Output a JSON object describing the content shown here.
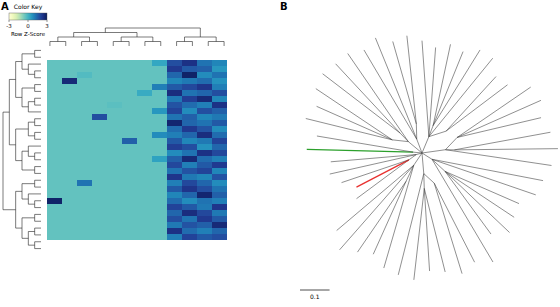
{
  "chart_data": [
    {
      "type": "heatmap",
      "panel": "A",
      "color_key": {
        "title": "Color Key",
        "label": "Row Z-Score",
        "range": [
          -3,
          3
        ],
        "ticks": [
          -3,
          0,
          3
        ]
      },
      "cells": [
        [
          -0.4,
          -0.4,
          -0.4,
          -0.4,
          -0.4,
          -0.4,
          -0.4,
          0.3,
          1.8,
          2.4,
          1.2,
          0.9
        ],
        [
          -0.4,
          -0.4,
          -0.4,
          -0.4,
          -0.4,
          -0.4,
          -0.4,
          -0.4,
          2.2,
          1.6,
          1.5,
          0.6
        ],
        [
          -0.4,
          -0.4,
          -0.2,
          -0.4,
          -0.4,
          -0.4,
          -0.4,
          -0.4,
          1.4,
          2.8,
          0.8,
          1.2
        ],
        [
          -0.4,
          2.6,
          -0.4,
          -0.4,
          -0.4,
          -0.4,
          -0.4,
          -0.4,
          0.9,
          1.1,
          1.3,
          0.7
        ],
        [
          -0.4,
          -0.4,
          -0.4,
          -0.4,
          -0.4,
          -0.4,
          -0.4,
          1.0,
          1.6,
          1.9,
          2.3,
          1.0
        ],
        [
          -0.4,
          -0.4,
          -0.4,
          -0.4,
          -0.4,
          -0.4,
          0.2,
          -0.4,
          2.5,
          1.2,
          1.4,
          1.8
        ],
        [
          -0.4,
          -0.4,
          -0.4,
          -0.4,
          -0.4,
          -0.4,
          -0.4,
          -0.4,
          1.1,
          2.1,
          2.6,
          0.9
        ],
        [
          -0.4,
          -0.4,
          -0.4,
          -0.4,
          -0.3,
          -0.4,
          -0.4,
          -0.4,
          1.7,
          1.3,
          1.0,
          2.4
        ],
        [
          -0.4,
          -0.4,
          -0.4,
          -0.4,
          -0.4,
          -0.4,
          -0.4,
          0.6,
          2.0,
          0.8,
          1.8,
          1.5
        ],
        [
          -0.4,
          -0.4,
          -0.4,
          1.8,
          -0.4,
          -0.4,
          -0.4,
          -0.4,
          1.2,
          1.5,
          0.9,
          1.1
        ],
        [
          -0.4,
          -0.4,
          -0.4,
          -0.4,
          -0.4,
          -0.4,
          -0.4,
          -0.4,
          2.7,
          1.4,
          1.2,
          1.6
        ],
        [
          -0.4,
          -0.4,
          -0.4,
          -0.4,
          -0.4,
          -0.4,
          -0.4,
          -0.4,
          1.3,
          2.2,
          1.7,
          0.8
        ],
        [
          -0.4,
          -0.4,
          -0.4,
          -0.4,
          -0.4,
          -0.4,
          -0.4,
          0.8,
          1.0,
          1.4,
          2.5,
          1.3
        ],
        [
          -0.4,
          -0.4,
          -0.4,
          -0.4,
          -0.4,
          1.5,
          -0.4,
          -0.4,
          1.6,
          0.9,
          1.1,
          2.0
        ],
        [
          -0.4,
          -0.4,
          -0.4,
          -0.4,
          -0.4,
          -0.4,
          -0.4,
          -0.4,
          2.1,
          1.8,
          0.7,
          1.4
        ],
        [
          -0.4,
          -0.4,
          -0.4,
          -0.4,
          -0.4,
          -0.4,
          -0.4,
          -0.4,
          0.8,
          1.2,
          2.4,
          1.9
        ],
        [
          -0.4,
          -0.4,
          -0.4,
          -0.4,
          -0.4,
          -0.4,
          -0.4,
          0.4,
          1.5,
          2.6,
          1.3,
          1.0
        ],
        [
          -0.4,
          -0.4,
          -0.4,
          -0.4,
          -0.4,
          -0.4,
          -0.4,
          -0.4,
          1.9,
          1.0,
          1.6,
          2.2
        ],
        [
          -0.4,
          -0.4,
          -0.4,
          -0.4,
          -0.4,
          -0.4,
          -0.4,
          -0.4,
          1.2,
          1.7,
          2.0,
          0.9
        ],
        [
          -0.4,
          -0.4,
          -0.4,
          -0.4,
          -0.4,
          -0.4,
          -0.4,
          -0.4,
          2.3,
          1.1,
          0.9,
          1.7
        ],
        [
          -0.4,
          -0.4,
          1.2,
          -0.4,
          -0.4,
          -0.4,
          -0.4,
          -0.4,
          1.0,
          1.9,
          1.4,
          0.8
        ],
        [
          -0.4,
          -0.4,
          -0.4,
          -0.4,
          -0.4,
          -0.4,
          -0.4,
          -0.4,
          1.6,
          2.3,
          1.8,
          1.2
        ],
        [
          -0.4,
          -0.4,
          -0.4,
          -0.4,
          -0.4,
          -0.4,
          -0.4,
          -0.4,
          0.9,
          1.4,
          2.7,
          1.5
        ],
        [
          2.8,
          -0.4,
          -0.4,
          -0.4,
          -0.4,
          -0.4,
          -0.4,
          -0.4,
          1.3,
          0.8,
          1.2,
          1.0
        ],
        [
          -0.4,
          -0.4,
          -0.4,
          -0.4,
          -0.4,
          -0.4,
          -0.4,
          -0.4,
          2.0,
          1.6,
          1.1,
          2.3
        ],
        [
          -0.4,
          -0.4,
          -0.4,
          -0.4,
          -0.4,
          -0.4,
          -0.4,
          -0.4,
          1.4,
          2.5,
          1.9,
          1.1
        ],
        [
          -0.4,
          -0.4,
          -0.4,
          -0.4,
          -0.4,
          -0.4,
          -0.4,
          -0.4,
          1.8,
          1.2,
          2.2,
          1.6
        ],
        [
          -0.4,
          -0.4,
          -0.4,
          -0.4,
          -0.4,
          -0.4,
          -0.4,
          -0.4,
          1.1,
          1.7,
          1.5,
          2.6
        ],
        [
          -0.4,
          -0.4,
          -0.4,
          -0.4,
          -0.4,
          -0.4,
          -0.4,
          -0.4,
          2.4,
          1.3,
          1.0,
          1.4
        ],
        [
          -0.4,
          -0.4,
          -0.4,
          -0.4,
          -0.4,
          -0.4,
          -0.4,
          -0.4,
          1.0,
          2.0,
          1.6,
          1.8
        ]
      ],
      "row_dendrogram": [
        [
          [
            [
              [
                0,
                1
              ],
              [
                2,
                [
                  3,
                  4
                ]
              ]
            ],
            [
              [
                5,
                6
              ],
              [
                [
                  7,
                  8
                ],
                9
              ]
            ]
          ],
          [
            [
              [
                10,
                11
              ],
              [
                12,
                13
              ]
            ],
            [
              [
                14,
                [
                  15,
                  16
                ]
              ],
              [
                17,
                18
              ]
            ]
          ]
        ],
        [
          [
            [
              19,
              20
            ],
            [
              21,
              [
                22,
                23
              ]
            ]
          ],
          [
            [
              24,
              25
            ],
            [
              [
                26,
                27
              ],
              [
                28,
                29
              ]
            ]
          ]
        ]
      ],
      "column_dendrogram": [
        [
          [
            [
              0,
              1
            ],
            [
              2,
              3
            ]
          ],
          [
            [
              4,
              5
            ],
            [
              6,
              7
            ]
          ]
        ],
        [
          [
            8,
            9
          ],
          [
            10,
            11
          ]
        ]
      ]
    },
    {
      "type": "tree",
      "panel": "B",
      "scale_bar": 0.1,
      "tree": {
        "c": [
          {
            "l": 0.06,
            "c": [
              0.32,
              0.3,
              {
                "l": 0.04,
                "c": [
                  0.28,
                  0.27,
                  0.3
                ]
              },
              0.34,
              {
                "l": 0.05,
                "c": [
                  0.25,
                  0.26
                ]
              }
            ]
          },
          {
            "l": 0.08,
            "c": [
              {
                "l": 0.05,
                "c": [
                  0.3,
                  0.31,
                  0.29
                ]
              },
              {
                "l": 0.03,
                "c": [
                  0.33,
                  0.35
                ]
              },
              0.36
            ]
          },
          {
            "l": 0.04,
            "c": [
              0.38,
              0.37,
              {
                "l": 0.06,
                "c": [
                  0.27,
                  0.28,
                  0.3,
                  0.26
                ]
              },
              0.4
            ]
          },
          {
            "l": 0.07,
            "c": [
              {
                "l": 0.04,
                "c": [
                  0.3,
                  0.32
                ]
              },
              {
                "l": 0.05,
                "c": [
                  0.29,
                  0.28,
                  0.31
                ]
              },
              0.35
            ]
          },
          {
            "l": 0.05,
            "c": [
              0.36,
              {
                "l": 0.06,
                "c": [
                  0.27,
                  0.29
                ]
              },
              0.38,
              0.34
            ]
          },
          {
            "l": 0.02,
            "c": [
              {
                "l": 0.03,
                "c": [
                  0.22,
                  {
                    "l": 0.2,
                    "color": "#e8312f"
                  },
                  0.24
                ]
              },
              0.3,
              0.29
            ]
          },
          {
            "l": 0.03,
            "c": [
              {
                "l": 0.36,
                "color": "#2ca02c"
              },
              0.33
            ]
          },
          {
            "l": 0.06,
            "c": [
              {
                "l": 0.05,
                "c": [
                  0.3,
                  0.28,
                  0.31
                ]
              },
              {
                "l": 0.04,
                "c": [
                  0.33,
                  0.32
                ]
              },
              0.36
            ]
          },
          {
            "l": 0.05,
            "c": [
              0.35,
              0.37,
              {
                "l": 0.05,
                "c": [
                  0.29,
                  0.3
                ]
              }
            ]
          }
        ]
      }
    }
  ]
}
